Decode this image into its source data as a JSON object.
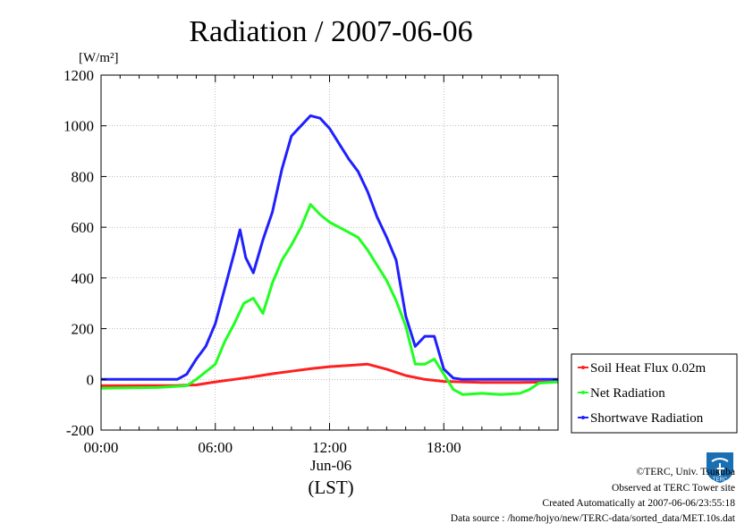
{
  "chart_data": {
    "type": "line",
    "title": "Radiation / 2007-06-06",
    "unit": "[W/m²]",
    "ylim": [
      -200,
      1200
    ],
    "yticks": [
      -200,
      0,
      200,
      400,
      600,
      800,
      1000,
      1200
    ],
    "xlim": [
      0,
      24
    ],
    "xticks": [
      {
        "x": 0,
        "label": "00:00"
      },
      {
        "x": 6,
        "label": "06:00"
      },
      {
        "x": 12,
        "label": "12:00"
      },
      {
        "x": 18,
        "label": "18:00"
      }
    ],
    "xdate": "Jun-06",
    "xlabel": "(LST)",
    "grid": true,
    "legend_position": "right",
    "series": [
      {
        "name": "Soil Heat Flux 0.02m",
        "color": "#ff2020",
        "points": [
          [
            0,
            -25
          ],
          [
            4,
            -24
          ],
          [
            5,
            -22
          ],
          [
            6,
            -10
          ],
          [
            7,
            0
          ],
          [
            8,
            10
          ],
          [
            9,
            22
          ],
          [
            10,
            32
          ],
          [
            11,
            42
          ],
          [
            12,
            50
          ],
          [
            13,
            55
          ],
          [
            14,
            60
          ],
          [
            15,
            40
          ],
          [
            16,
            15
          ],
          [
            17,
            0
          ],
          [
            18,
            -8
          ],
          [
            20,
            -12
          ],
          [
            22,
            -12
          ],
          [
            24,
            -10
          ]
        ]
      },
      {
        "name": "Net Radiation",
        "color": "#20ff20",
        "points": [
          [
            0,
            -35
          ],
          [
            3,
            -32
          ],
          [
            4.5,
            -25
          ],
          [
            5,
            0
          ],
          [
            5.5,
            30
          ],
          [
            6,
            60
          ],
          [
            6.5,
            150
          ],
          [
            7,
            220
          ],
          [
            7.5,
            300
          ],
          [
            8,
            320
          ],
          [
            8.5,
            260
          ],
          [
            9,
            380
          ],
          [
            9.5,
            470
          ],
          [
            10,
            530
          ],
          [
            10.5,
            600
          ],
          [
            11,
            690
          ],
          [
            11.5,
            650
          ],
          [
            12,
            620
          ],
          [
            12.5,
            600
          ],
          [
            13,
            580
          ],
          [
            13.5,
            560
          ],
          [
            14,
            510
          ],
          [
            14.5,
            450
          ],
          [
            15,
            390
          ],
          [
            15.5,
            310
          ],
          [
            16,
            210
          ],
          [
            16.5,
            60
          ],
          [
            17,
            60
          ],
          [
            17.5,
            80
          ],
          [
            18,
            20
          ],
          [
            18.5,
            -40
          ],
          [
            19,
            -60
          ],
          [
            20,
            -55
          ],
          [
            21,
            -60
          ],
          [
            22,
            -55
          ],
          [
            22.5,
            -40
          ],
          [
            23,
            -15
          ],
          [
            24,
            -10
          ]
        ]
      },
      {
        "name": "Shortwave Radiation",
        "color": "#2020ff",
        "points": [
          [
            0,
            0
          ],
          [
            4,
            0
          ],
          [
            4.5,
            20
          ],
          [
            5,
            80
          ],
          [
            5.5,
            130
          ],
          [
            6,
            220
          ],
          [
            6.5,
            360
          ],
          [
            7,
            500
          ],
          [
            7.3,
            590
          ],
          [
            7.6,
            480
          ],
          [
            8,
            420
          ],
          [
            8.5,
            550
          ],
          [
            9,
            660
          ],
          [
            9.5,
            830
          ],
          [
            10,
            960
          ],
          [
            10.5,
            1000
          ],
          [
            11,
            1040
          ],
          [
            11.5,
            1030
          ],
          [
            12,
            990
          ],
          [
            12.5,
            930
          ],
          [
            13,
            870
          ],
          [
            13.5,
            820
          ],
          [
            14,
            740
          ],
          [
            14.5,
            640
          ],
          [
            15,
            560
          ],
          [
            15.5,
            470
          ],
          [
            16,
            250
          ],
          [
            16.5,
            130
          ],
          [
            17,
            170
          ],
          [
            17.5,
            170
          ],
          [
            18,
            40
          ],
          [
            18.5,
            5
          ],
          [
            19,
            0
          ],
          [
            24,
            0
          ]
        ]
      }
    ]
  },
  "footer": {
    "copyright": "©TERC, Univ. Tsukuba",
    "observed": "Observed at TERC Tower site",
    "created": "Created Automatically at 2007-06-06/23:55:18",
    "source": "Data source : /home/hojyo/new/TERC-data/sorted_data/MET.10s.dat"
  },
  "logo": {
    "text": "TERC",
    "color": "#1a6fb3"
  }
}
